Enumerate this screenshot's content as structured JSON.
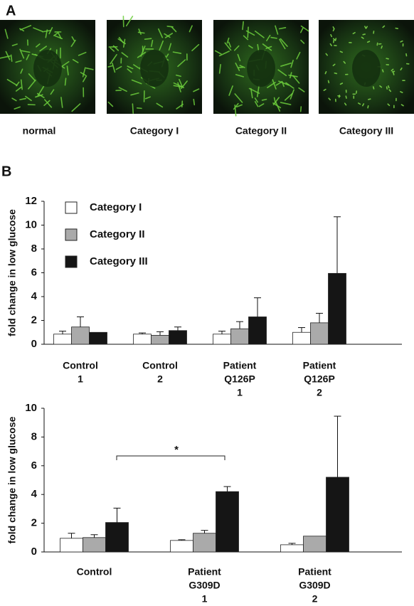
{
  "panel_a": {
    "label": "A",
    "images": [
      "normal",
      "Category I",
      "Category II",
      "Category III"
    ]
  },
  "panel_b": {
    "label": "B"
  },
  "chart_data": [
    {
      "type": "bar",
      "ylabel": "fold change in low glucose",
      "categories": [
        [
          "Control",
          "1"
        ],
        [
          "Control",
          "2"
        ],
        [
          "Patient",
          "Q126P",
          "1"
        ],
        [
          "Patient",
          "Q126P",
          "2"
        ]
      ],
      "series": [
        {
          "name": "Category I",
          "color": "#ffffff",
          "values": [
            0.85,
            0.85,
            0.85,
            1.0
          ],
          "errors": [
            0.25,
            0.1,
            0.25,
            0.4
          ]
        },
        {
          "name": "Category II",
          "color": "#aaaaaa",
          "values": [
            1.45,
            0.75,
            1.3,
            1.8
          ],
          "errors": [
            0.85,
            0.3,
            0.6,
            0.8
          ]
        },
        {
          "name": "Category III",
          "color": "#151515",
          "values": [
            1.0,
            1.15,
            2.3,
            5.95
          ],
          "errors": [
            0,
            0.3,
            1.6,
            4.75
          ]
        }
      ],
      "ylim": [
        0,
        12
      ],
      "yticks": [
        0,
        2,
        4,
        6,
        8,
        10,
        12
      ],
      "legend": "upper left"
    },
    {
      "type": "bar",
      "ylabel": "fold change in low glucose",
      "categories": [
        [
          "Control"
        ],
        [
          "Patient",
          "G309D",
          "1"
        ],
        [
          "Patient",
          "G309D",
          "2"
        ]
      ],
      "series": [
        {
          "color": "#ffffff",
          "values": [
            0.95,
            0.8,
            0.5
          ],
          "errors": [
            0.35,
            0.05,
            0.1
          ]
        },
        {
          "color": "#aaaaaa",
          "values": [
            1.0,
            1.3,
            1.1
          ],
          "errors": [
            0.2,
            0.2,
            0
          ]
        },
        {
          "color": "#151515",
          "values": [
            2.05,
            4.2,
            5.2
          ],
          "errors": [
            1.0,
            0.35,
            4.25
          ]
        }
      ],
      "ylim": [
        0,
        10
      ],
      "yticks": [
        0,
        2,
        4,
        6,
        8,
        10
      ],
      "annotation": "*"
    }
  ]
}
